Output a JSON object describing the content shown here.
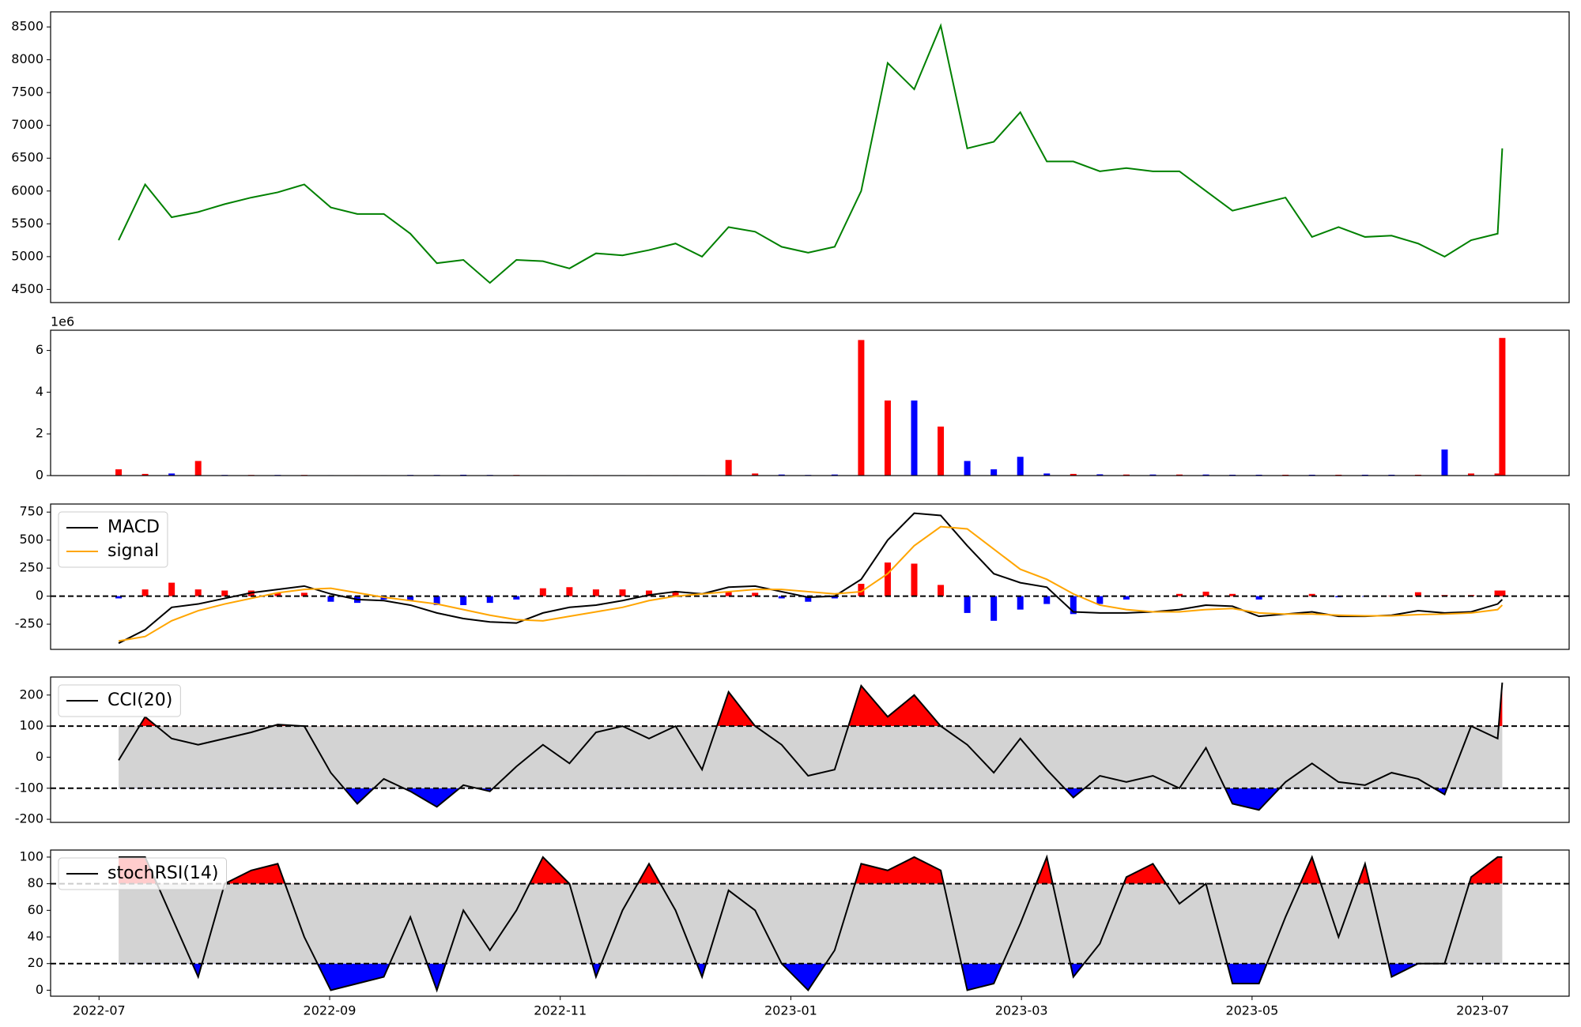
{
  "chart_data": [
    {
      "type": "line",
      "color": "green",
      "x": [
        0.17,
        0.4,
        0.63,
        0.86,
        1.09,
        1.32,
        1.55,
        1.78,
        2.01,
        2.24,
        2.47,
        2.7,
        2.93,
        3.16,
        3.39,
        3.62,
        3.85,
        4.08,
        4.31,
        4.54,
        4.77,
        5.0,
        5.23,
        5.46,
        5.69,
        5.92,
        6.15,
        6.38,
        6.61,
        6.84,
        7.07,
        7.3,
        7.53,
        7.76,
        7.99,
        8.22,
        8.45,
        8.68,
        8.91,
        9.14,
        9.37,
        9.6,
        9.83,
        10.06,
        10.29,
        10.52,
        10.75,
        10.98,
        11.21,
        11.44,
        11.67,
        11.9,
        12.13,
        12.17
      ],
      "values": [
        5250,
        6100,
        5600,
        5680,
        5800,
        5900,
        5980,
        6100,
        5750,
        5650,
        5650,
        5350,
        4900,
        4950,
        4600,
        4950,
        4930,
        4820,
        5050,
        5020,
        5100,
        5200,
        5000,
        5450,
        5380,
        5150,
        5060,
        5150,
        6000,
        7950,
        7550,
        8520,
        6650,
        6750,
        7200,
        6450,
        6450,
        6300,
        6350,
        6300,
        6300,
        6000,
        5700,
        5800,
        5900,
        5300,
        5450,
        5300,
        5320,
        5200,
        5000,
        5250,
        5350,
        6650
      ],
      "xlim": [
        -0.42,
        12.75
      ],
      "ylim": [
        4300,
        8730
      ],
      "yticks": [
        4500,
        5000,
        5500,
        6000,
        6500,
        7000,
        7500,
        8000,
        8500
      ]
    },
    {
      "type": "bar",
      "offset_label": "1e6",
      "x": [
        0.17,
        0.4,
        0.63,
        0.86,
        1.09,
        1.32,
        1.55,
        1.78,
        2.01,
        2.24,
        2.47,
        2.7,
        2.93,
        3.16,
        3.39,
        3.62,
        3.85,
        4.08,
        4.31,
        4.54,
        4.77,
        5.0,
        5.23,
        5.46,
        5.69,
        5.92,
        6.15,
        6.38,
        6.61,
        6.84,
        7.07,
        7.3,
        7.53,
        7.76,
        7.99,
        8.22,
        8.45,
        8.68,
        8.91,
        9.14,
        9.37,
        9.6,
        9.83,
        10.06,
        10.29,
        10.52,
        10.75,
        10.98,
        11.21,
        11.44,
        11.67,
        11.9,
        12.13,
        12.17
      ],
      "values": [
        0.3,
        0.08,
        0.1,
        0.7,
        0.03,
        0.03,
        0.03,
        0.03,
        0.02,
        0.02,
        0.02,
        0.03,
        0.03,
        0.04,
        0.03,
        0.03,
        0.02,
        0.02,
        0.02,
        0.02,
        0.02,
        0.02,
        0.02,
        0.75,
        0.1,
        0.05,
        0.03,
        0.05,
        6.5,
        3.6,
        3.6,
        2.35,
        0.7,
        0.3,
        0.9,
        0.1,
        0.08,
        0.06,
        0.05,
        0.05,
        0.05,
        0.05,
        0.04,
        0.04,
        0.04,
        0.04,
        0.04,
        0.04,
        0.04,
        0.04,
        1.25,
        0.1,
        0.1,
        6.6
      ],
      "colors": [
        "red",
        "red",
        "blue",
        "red",
        "blue",
        "red",
        "blue",
        "red",
        "blue",
        "red",
        "blue",
        "blue",
        "blue",
        "blue",
        "blue",
        "red",
        "red",
        "blue",
        "red",
        "blue",
        "red",
        "red",
        "blue",
        "red",
        "red",
        "blue",
        "blue",
        "blue",
        "red",
        "red",
        "blue",
        "red",
        "blue",
        "blue",
        "blue",
        "blue",
        "red",
        "blue",
        "red",
        "blue",
        "red",
        "blue",
        "blue",
        "blue",
        "red",
        "blue",
        "red",
        "blue",
        "blue",
        "red",
        "blue",
        "red",
        "red",
        "red"
      ],
      "xlim": [
        -0.42,
        12.75
      ],
      "ylim": [
        0,
        6.97
      ],
      "yticks": [
        0,
        2,
        4,
        6
      ]
    },
    {
      "type": "indicator",
      "legend": "upper left",
      "x": [
        0.17,
        0.4,
        0.63,
        0.86,
        1.09,
        1.32,
        1.55,
        1.78,
        2.01,
        2.24,
        2.47,
        2.7,
        2.93,
        3.16,
        3.39,
        3.62,
        3.85,
        4.08,
        4.31,
        4.54,
        4.77,
        5.0,
        5.23,
        5.46,
        5.69,
        5.92,
        6.15,
        6.38,
        6.61,
        6.84,
        7.07,
        7.3,
        7.53,
        7.76,
        7.99,
        8.22,
        8.45,
        8.68,
        8.91,
        9.14,
        9.37,
        9.6,
        9.83,
        10.06,
        10.29,
        10.52,
        10.75,
        10.98,
        11.21,
        11.44,
        11.67,
        11.9,
        12.13,
        12.17
      ],
      "series": [
        {
          "name": "MACD",
          "color": "black",
          "values": [
            -420,
            -300,
            -100,
            -70,
            -20,
            30,
            60,
            90,
            20,
            -30,
            -40,
            -80,
            -150,
            -200,
            -230,
            -240,
            -150,
            -100,
            -80,
            -40,
            10,
            40,
            20,
            80,
            90,
            40,
            -10,
            0,
            150,
            500,
            740,
            720,
            450,
            200,
            120,
            80,
            -140,
            -150,
            -150,
            -140,
            -120,
            -80,
            -90,
            -180,
            -160,
            -140,
            -180,
            -180,
            -170,
            -130,
            -150,
            -140,
            -70,
            -30
          ]
        },
        {
          "name": "signal",
          "color": "orange",
          "values": [
            -400,
            -360,
            -220,
            -130,
            -70,
            -20,
            30,
            60,
            70,
            30,
            -10,
            -40,
            -70,
            -120,
            -170,
            -210,
            -220,
            -180,
            -140,
            -100,
            -40,
            0,
            20,
            40,
            60,
            60,
            40,
            20,
            40,
            200,
            450,
            620,
            600,
            420,
            240,
            150,
            20,
            -80,
            -120,
            -140,
            -140,
            -120,
            -110,
            -150,
            -160,
            -160,
            -170,
            -175,
            -175,
            -165,
            -160,
            -150,
            -120,
            -80
          ]
        }
      ],
      "histogram": {
        "values": [
          -20,
          60,
          120,
          60,
          50,
          50,
          30,
          30,
          -50,
          -60,
          -30,
          -40,
          -80,
          -80,
          -60,
          -30,
          70,
          80,
          60,
          60,
          50,
          40,
          0,
          40,
          30,
          -20,
          -50,
          -20,
          110,
          300,
          290,
          100,
          -150,
          -220,
          -120,
          -70,
          -160,
          -70,
          -30,
          0,
          20,
          40,
          20,
          -30,
          0,
          20,
          -10,
          -5,
          5,
          35,
          10,
          10,
          50,
          50
        ],
        "positive_color": "red",
        "negative_color": "blue"
      },
      "hlines": [
        0
      ],
      "xlim": [
        -0.42,
        12.75
      ],
      "ylim": [
        -475,
        822
      ],
      "yticks": [
        -250,
        0,
        250,
        500,
        750
      ]
    },
    {
      "type": "indicator",
      "legend": "upper left",
      "x": [
        0.17,
        0.4,
        0.63,
        0.86,
        1.09,
        1.32,
        1.55,
        1.78,
        2.01,
        2.24,
        2.47,
        2.7,
        2.93,
        3.16,
        3.39,
        3.62,
        3.85,
        4.08,
        4.31,
        4.54,
        4.77,
        5.0,
        5.23,
        5.46,
        5.69,
        5.92,
        6.15,
        6.38,
        6.61,
        6.84,
        7.07,
        7.3,
        7.53,
        7.76,
        7.99,
        8.22,
        8.45,
        8.68,
        8.91,
        9.14,
        9.37,
        9.6,
        9.83,
        10.06,
        10.29,
        10.52,
        10.75,
        10.98,
        11.21,
        11.44,
        11.67,
        11.9,
        12.13,
        12.17
      ],
      "series": [
        {
          "name": "CCI(20)",
          "color": "black",
          "values": [
            -10,
            130,
            60,
            40,
            60,
            80,
            105,
            100,
            -50,
            -150,
            -70,
            -110,
            -160,
            -90,
            -110,
            -30,
            40,
            -20,
            80,
            100,
            60,
            100,
            -40,
            210,
            100,
            40,
            -60,
            -40,
            230,
            130,
            200,
            100,
            40,
            -50,
            60,
            -40,
            -130,
            -60,
            -80,
            -60,
            -100,
            30,
            -150,
            -170,
            -80,
            -20,
            -80,
            -90,
            -50,
            -70,
            -120,
            100,
            60,
            240
          ]
        }
      ],
      "band": [
        -100,
        100
      ],
      "band_color": "lightgray",
      "above_color": "red",
      "below_color": "blue",
      "xlim": [
        -0.42,
        12.75
      ],
      "ylim": [
        -210,
        258
      ],
      "yticks": [
        -200,
        -100,
        0,
        100,
        200
      ]
    },
    {
      "type": "indicator",
      "legend": "upper left",
      "x": [
        0.17,
        0.4,
        0.63,
        0.86,
        1.09,
        1.32,
        1.55,
        1.78,
        2.01,
        2.24,
        2.47,
        2.7,
        2.93,
        3.16,
        3.39,
        3.62,
        3.85,
        4.08,
        4.31,
        4.54,
        4.77,
        5.0,
        5.23,
        5.46,
        5.69,
        5.92,
        6.15,
        6.38,
        6.61,
        6.84,
        7.07,
        7.3,
        7.53,
        7.76,
        7.99,
        8.22,
        8.45,
        8.68,
        8.91,
        9.14,
        9.37,
        9.6,
        9.83,
        10.06,
        10.29,
        10.52,
        10.75,
        10.98,
        11.21,
        11.44,
        11.67,
        11.9,
        12.13,
        12.17
      ],
      "series": [
        {
          "name": "stochRSI(14)",
          "color": "black",
          "values": [
            100,
            100,
            55,
            10,
            80,
            90,
            95,
            40,
            0,
            5,
            10,
            55,
            0,
            60,
            30,
            60,
            100,
            80,
            10,
            60,
            95,
            60,
            10,
            75,
            60,
            20,
            0,
            30,
            95,
            90,
            100,
            90,
            0,
            5,
            50,
            100,
            10,
            35,
            85,
            95,
            65,
            80,
            5,
            5,
            55,
            100,
            40,
            95,
            10,
            20,
            20,
            85,
            100,
            100
          ]
        }
      ],
      "band": [
        20,
        80
      ],
      "band_color": "lightgray",
      "above_color": "red",
      "below_color": "blue",
      "xlim": [
        -0.42,
        12.75
      ],
      "ylim": [
        -4.5,
        105.3
      ],
      "yticks": [
        0,
        20,
        40,
        60,
        80,
        100
      ],
      "xticks": [
        {
          "value": 0,
          "label": "2022-07"
        },
        {
          "value": 2,
          "label": "2022-09"
        },
        {
          "value": 4,
          "label": "2022-11"
        },
        {
          "value": 6,
          "label": "2023-01"
        },
        {
          "value": 8,
          "label": "2023-03"
        },
        {
          "value": 10,
          "label": "2023-05"
        },
        {
          "value": 12,
          "label": "2023-07"
        }
      ]
    }
  ]
}
